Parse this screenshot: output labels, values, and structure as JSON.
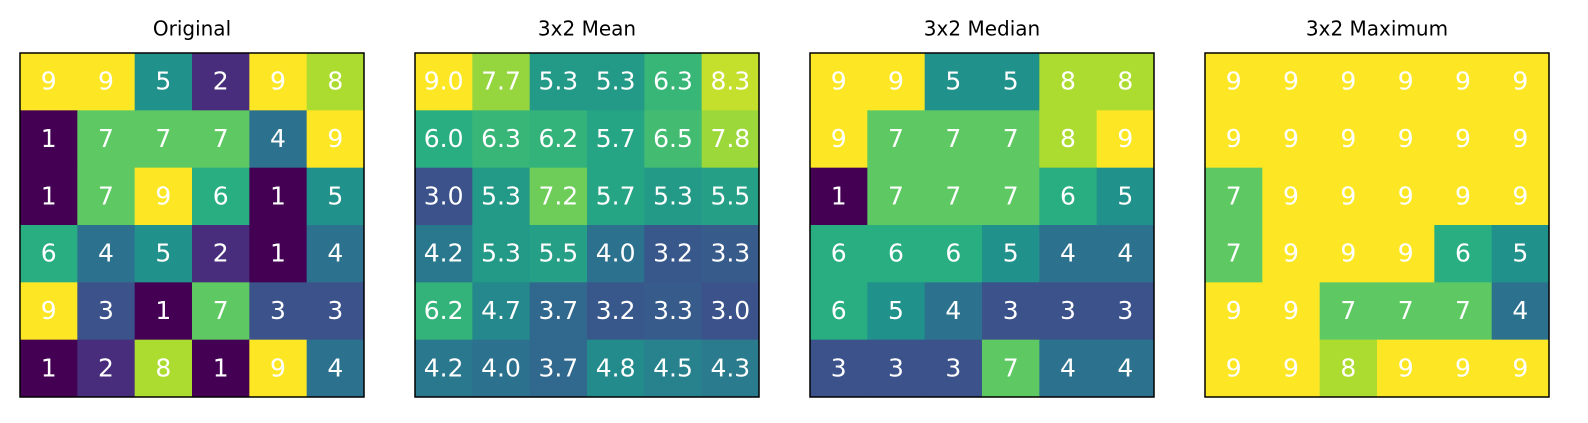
{
  "chart_data": [
    {
      "type": "heatmap",
      "title": "Original",
      "colormap": "viridis",
      "clim": [
        1,
        9
      ],
      "values": [
        [
          9,
          9,
          5,
          2,
          9,
          8
        ],
        [
          1,
          7,
          7,
          7,
          4,
          9
        ],
        [
          1,
          7,
          9,
          6,
          1,
          5
        ],
        [
          6,
          4,
          5,
          2,
          1,
          4
        ],
        [
          9,
          3,
          1,
          7,
          3,
          3
        ],
        [
          1,
          2,
          8,
          1,
          9,
          4
        ]
      ]
    },
    {
      "type": "heatmap",
      "title": "3x2 Mean",
      "colormap": "viridis",
      "clim": [
        1,
        9
      ],
      "values": [
        [
          9.0,
          7.7,
          5.3,
          5.3,
          6.3,
          8.3
        ],
        [
          6.0,
          6.3,
          6.2,
          5.7,
          6.5,
          7.8
        ],
        [
          3.0,
          5.3,
          7.2,
          5.7,
          5.3,
          5.5
        ],
        [
          4.2,
          5.3,
          5.5,
          4.0,
          3.2,
          3.3
        ],
        [
          6.2,
          4.7,
          3.7,
          3.2,
          3.3,
          3.0
        ],
        [
          4.2,
          4.0,
          3.7,
          4.8,
          4.5,
          4.3
        ]
      ],
      "value_labels": [
        [
          "9.0",
          "7.7",
          "5.3",
          "5.3",
          "6.3",
          "8.3"
        ],
        [
          "6.0",
          "6.3",
          "6.2",
          "5.7",
          "6.5",
          "7.8"
        ],
        [
          "3.0",
          "5.3",
          "7.2",
          "5.7",
          "5.3",
          "5.5"
        ],
        [
          "4.2",
          "5.3",
          "5.5",
          "4.0",
          "3.2",
          "3.3"
        ],
        [
          "6.2",
          "4.7",
          "3.7",
          "3.2",
          "3.3",
          "3.0"
        ],
        [
          "4.2",
          "4.0",
          "3.7",
          "4.8",
          "4.5",
          "4.3"
        ]
      ]
    },
    {
      "type": "heatmap",
      "title": "3x2 Median",
      "colormap": "viridis",
      "clim": [
        1,
        9
      ],
      "values": [
        [
          9,
          9,
          5,
          5,
          8,
          8
        ],
        [
          9,
          7,
          7,
          7,
          8,
          9
        ],
        [
          1,
          7,
          7,
          7,
          6,
          5
        ],
        [
          6,
          6,
          6,
          5,
          4,
          4
        ],
        [
          6,
          5,
          4,
          3,
          3,
          3
        ],
        [
          3,
          3,
          3,
          7,
          4,
          4
        ]
      ]
    },
    {
      "type": "heatmap",
      "title": "3x2 Maximum",
      "colormap": "viridis",
      "clim": [
        1,
        9
      ],
      "values": [
        [
          9,
          9,
          9,
          9,
          9,
          9
        ],
        [
          9,
          9,
          9,
          9,
          9,
          9
        ],
        [
          7,
          9,
          9,
          9,
          9,
          9
        ],
        [
          7,
          9,
          9,
          9,
          6,
          5
        ],
        [
          9,
          9,
          7,
          7,
          7,
          4
        ],
        [
          9,
          9,
          8,
          9,
          9,
          9
        ]
      ]
    }
  ]
}
